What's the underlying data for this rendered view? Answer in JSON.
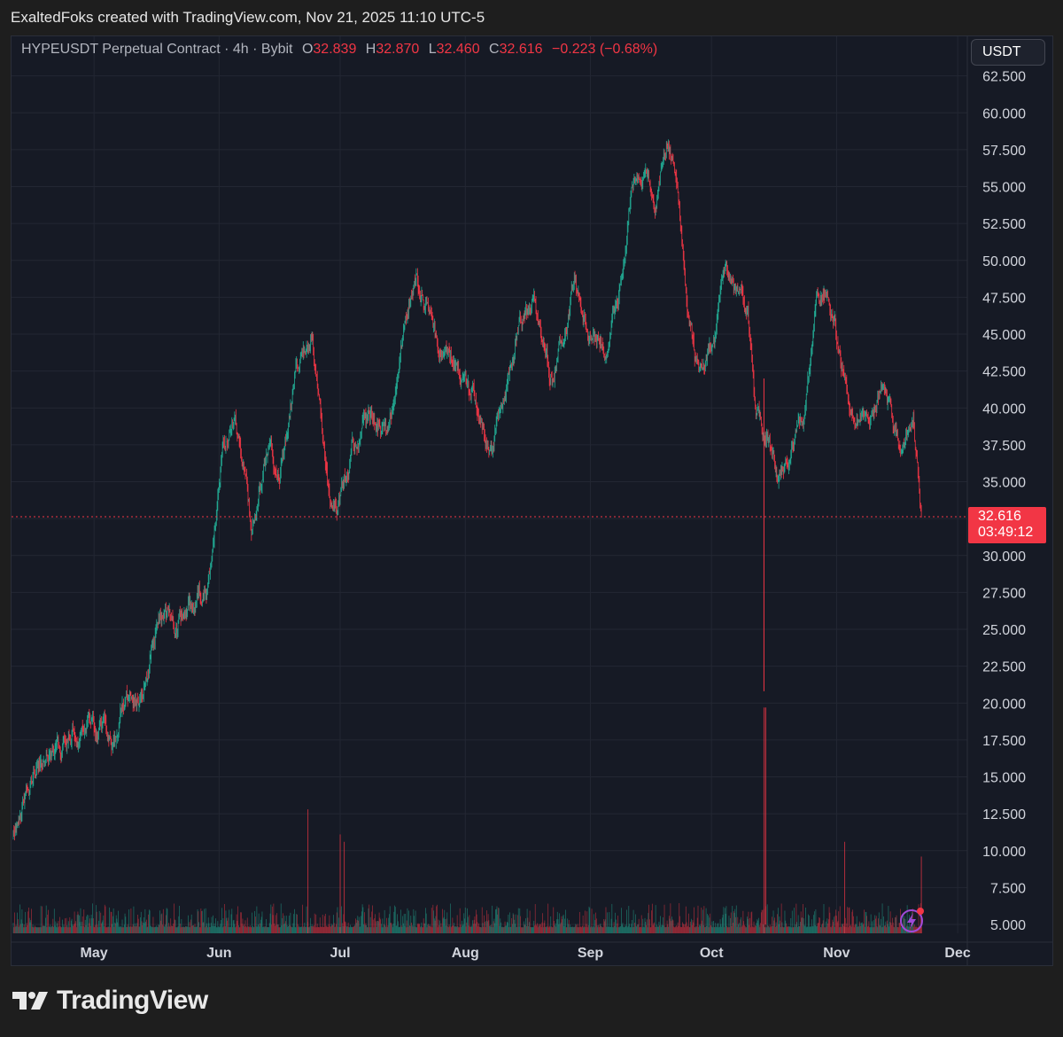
{
  "attribution": "ExaltedFoks created with TradingView.com, Nov 21, 2025 11:10 UTC-5",
  "legend": {
    "symbol": "HYPEUSDT Perpetual Contract · 4h · Bybit",
    "open_label": "O",
    "open": "32.839",
    "high_label": "H",
    "high": "32.870",
    "low_label": "L",
    "low": "32.460",
    "close_label": "C",
    "close": "32.616",
    "change": "−0.223 (−0.68%)"
  },
  "currency": "USDT",
  "last_price": {
    "value": "32.616",
    "countdown": "03:49:12"
  },
  "brand": "TradingView",
  "colors": {
    "up": "#22ab94",
    "down": "#f23645",
    "bg": "#161a25",
    "grid": "#232733",
    "text": "#d1d4dc"
  },
  "chart_data": {
    "type": "candlestick",
    "title": "HYPEUSDT Perpetual Contract · 4h · Bybit",
    "x_ticks": [
      "May",
      "Jun",
      "Jul",
      "Aug",
      "Sep",
      "Oct",
      "Nov",
      "Dec"
    ],
    "y_ticks": [
      "62.500",
      "60.000",
      "57.500",
      "55.000",
      "52.500",
      "50.000",
      "47.500",
      "45.000",
      "42.500",
      "40.000",
      "37.500",
      "35.000",
      "30.000",
      "27.500",
      "25.000",
      "22.500",
      "20.000",
      "17.500",
      "15.000",
      "12.500",
      "10.000",
      "7.500",
      "5.000"
    ],
    "ylim": [
      4.3,
      63.3
    ],
    "x_range_days": [
      "Apr 11",
      "Dec 1"
    ],
    "price_path": [
      {
        "day": 0,
        "price": 11.2
      },
      {
        "day": 5,
        "price": 15.5
      },
      {
        "day": 10,
        "price": 16.5
      },
      {
        "day": 15,
        "price": 18.2
      },
      {
        "day": 20,
        "price": 18.6
      },
      {
        "day": 25,
        "price": 17.8
      },
      {
        "day": 28,
        "price": 20.4
      },
      {
        "day": 32,
        "price": 20.0
      },
      {
        "day": 36,
        "price": 25.8
      },
      {
        "day": 40,
        "price": 25.2
      },
      {
        "day": 44,
        "price": 26.8
      },
      {
        "day": 48,
        "price": 28.0
      },
      {
        "day": 52,
        "price": 37.0
      },
      {
        "day": 55,
        "price": 39.0
      },
      {
        "day": 59,
        "price": 31.8
      },
      {
        "day": 63,
        "price": 37.5
      },
      {
        "day": 66,
        "price": 35.0
      },
      {
        "day": 70,
        "price": 42.5
      },
      {
        "day": 74,
        "price": 44.5
      },
      {
        "day": 78,
        "price": 34.5
      },
      {
        "day": 80,
        "price": 32.5
      },
      {
        "day": 84,
        "price": 37.5
      },
      {
        "day": 88,
        "price": 39.5
      },
      {
        "day": 93,
        "price": 38.0
      },
      {
        "day": 97,
        "price": 46.5
      },
      {
        "day": 100,
        "price": 48.5
      },
      {
        "day": 105,
        "price": 44.5
      },
      {
        "day": 109,
        "price": 43.0
      },
      {
        "day": 114,
        "price": 40.5
      },
      {
        "day": 118,
        "price": 37.0
      },
      {
        "day": 122,
        "price": 41.0
      },
      {
        "day": 126,
        "price": 46.0
      },
      {
        "day": 129,
        "price": 47.5
      },
      {
        "day": 133,
        "price": 42.0
      },
      {
        "day": 137,
        "price": 45.5
      },
      {
        "day": 139,
        "price": 49.0
      },
      {
        "day": 142,
        "price": 45.0
      },
      {
        "day": 147,
        "price": 44.5
      },
      {
        "day": 150,
        "price": 47.5
      },
      {
        "day": 153,
        "price": 55.0
      },
      {
        "day": 156,
        "price": 56.0
      },
      {
        "day": 159,
        "price": 53.5
      },
      {
        "day": 162,
        "price": 58.5
      },
      {
        "day": 164,
        "price": 56.0
      },
      {
        "day": 167,
        "price": 47.0
      },
      {
        "day": 170,
        "price": 42.0
      },
      {
        "day": 173,
        "price": 44.0
      },
      {
        "day": 176,
        "price": 49.5
      },
      {
        "day": 179,
        "price": 48.0
      },
      {
        "day": 182,
        "price": 46.0
      },
      {
        "day": 184,
        "price": 40.0
      },
      {
        "day": 187,
        "price": 38.0
      },
      {
        "day": 190,
        "price": 35.0
      },
      {
        "day": 193,
        "price": 37.5
      },
      {
        "day": 196,
        "price": 39.5
      },
      {
        "day": 199,
        "price": 47.5
      },
      {
        "day": 202,
        "price": 48.0
      },
      {
        "day": 205,
        "price": 43.0
      },
      {
        "day": 208,
        "price": 40.5
      },
      {
        "day": 212,
        "price": 39.0
      },
      {
        "day": 215,
        "price": 41.0
      },
      {
        "day": 218,
        "price": 38.5
      },
      {
        "day": 221,
        "price": 37.5
      },
      {
        "day": 223,
        "price": 39.0
      },
      {
        "day": 224,
        "price": 36.0
      },
      {
        "day": 225,
        "price": 32.6
      }
    ],
    "extreme_wicks": [
      {
        "day": 186,
        "low": 20.8,
        "high": 42.0
      },
      {
        "day": 186.4,
        "low": 5.0,
        "high": 19.7
      }
    ],
    "volume_spikes": [
      {
        "day": 73,
        "value": 12.8
      },
      {
        "day": 81,
        "value": 11.1
      },
      {
        "day": 82,
        "value": 10.6
      },
      {
        "day": 186,
        "value": 19.7
      },
      {
        "day": 206,
        "value": 10.6
      },
      {
        "day": 225,
        "value": 9.6
      }
    ]
  }
}
